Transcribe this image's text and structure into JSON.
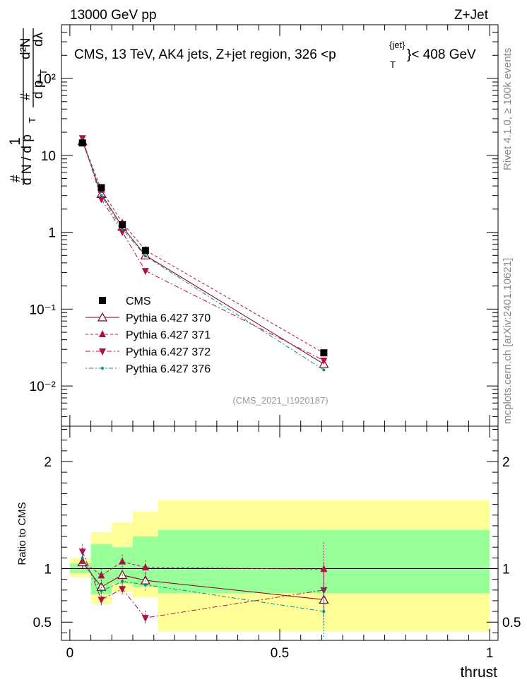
{
  "header": {
    "energy": "13000 GeV pp",
    "process": "Z+Jet"
  },
  "side_text": {
    "rivet": "Rivet 4.1.0, ≥ 100k events",
    "mcplots": "mcplots.cern.ch [arXiv:2401.10621]"
  },
  "chart_data": [
    {
      "type": "line",
      "panel": "main",
      "title": "CMS, 13 TeV, AK4 jets, Z+jet region, 326 <p",
      "title_super": "{jet}",
      "title_sub": "T",
      "title_suffix": "}< 408 GeV",
      "ylabel_parts": [
        "1",
        "d N / d p",
        "T",
        "#",
        "d p",
        "T",
        "dλ",
        "d²N",
        "#",
        "#"
      ],
      "yscale": "log",
      "ylim": [
        0.003,
        500
      ],
      "xlim": [
        -0.02,
        1.02
      ],
      "ytick_labels": [
        "10⁻²",
        "10⁻¹",
        "1",
        "10",
        "10²"
      ],
      "ytick_values": [
        0.01,
        0.1,
        1,
        10,
        100
      ],
      "watermark": "(CMS_2021_I1920187)",
      "legend_position": "center-left",
      "x": [
        0.03,
        0.075,
        0.125,
        0.18,
        0.605
      ],
      "series": [
        {
          "name": "CMS",
          "color": "#000000",
          "marker": "square",
          "values": [
            14.5,
            3.8,
            1.25,
            0.58,
            0.027
          ]
        },
        {
          "name": "Pythia 6.427 370",
          "color": "#800020",
          "marker": "open-triangle-up",
          "dash": "solid",
          "values": [
            15.3,
            3.15,
            1.18,
            0.5,
            0.0193
          ]
        },
        {
          "name": "Pythia 6.427 371",
          "color": "#b0104a",
          "marker": "triangle-up",
          "dash": "4,3",
          "values": [
            15.5,
            3.55,
            1.33,
            0.585,
            0.0268
          ]
        },
        {
          "name": "Pythia 6.427 372",
          "color": "#b0104a",
          "marker": "triangle-down",
          "dash": "7,3,2,3",
          "values": [
            16.8,
            2.7,
            1.01,
            0.315,
            0.0215
          ]
        },
        {
          "name": "Pythia 6.427 376",
          "color": "#008b8b",
          "marker": "dot",
          "dash": "2,3,6,3",
          "values": [
            15.9,
            3.0,
            1.1,
            0.49,
            0.0162
          ]
        }
      ]
    },
    {
      "type": "line",
      "panel": "ratio",
      "ylabel": "Ratio to CMS",
      "xlabel": "thrust",
      "ylim": [
        0.33,
        2.33
      ],
      "xlim": [
        -0.02,
        1.02
      ],
      "ytick_labels": [
        "0.5",
        "1",
        "2"
      ],
      "ytick_values": [
        0.5,
        1,
        2
      ],
      "xtick_labels": [
        "0",
        "0.5",
        "1"
      ],
      "xtick_values": [
        0,
        0.5,
        1
      ],
      "bins": [
        [
          0.0,
          0.05
        ],
        [
          0.05,
          0.1
        ],
        [
          0.1,
          0.15
        ],
        [
          0.15,
          0.21
        ],
        [
          0.21,
          1.0
        ]
      ],
      "band_yellow": [
        [
          0.92,
          1.1
        ],
        [
          0.67,
          1.34
        ],
        [
          0.78,
          1.43
        ],
        [
          0.73,
          1.53
        ],
        [
          0.41,
          1.64
        ]
      ],
      "band_green": [
        [
          0.96,
          1.05
        ],
        [
          0.76,
          1.23
        ],
        [
          0.86,
          1.2
        ],
        [
          0.83,
          1.3
        ],
        [
          0.77,
          1.36
        ]
      ],
      "x": [
        0.03,
        0.075,
        0.125,
        0.18,
        0.605
      ],
      "series": [
        {
          "name": "Pythia 6.427 370",
          "values": [
            1.06,
            0.83,
            0.94,
            0.89,
            0.71
          ]
        },
        {
          "name": "Pythia 6.427 371",
          "values": [
            1.07,
            0.935,
            1.065,
            1.01,
            0.995
          ]
        },
        {
          "name": "Pythia 6.427 372",
          "values": [
            1.16,
            0.71,
            0.81,
            0.54,
            0.8
          ]
        },
        {
          "name": "Pythia 6.427 376",
          "values": [
            1.1,
            0.79,
            0.88,
            0.85,
            0.6
          ]
        }
      ]
    }
  ]
}
